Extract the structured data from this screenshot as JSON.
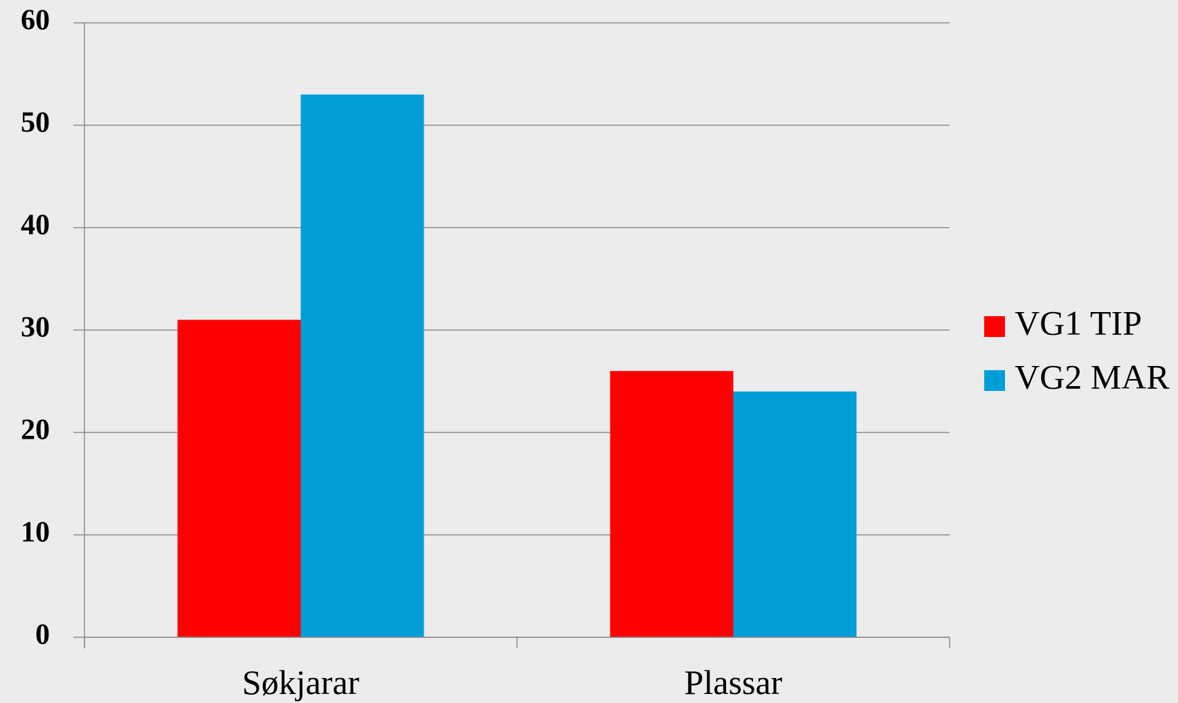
{
  "chart_data": {
    "type": "bar",
    "categories": [
      "Søkjarar",
      "Plassar"
    ],
    "series": [
      {
        "name": "VG1 TIP",
        "values": [
          31,
          26
        ],
        "color": "#ff0000"
      },
      {
        "name": "VG2 MAR",
        "values": [
          53,
          24
        ],
        "color": "#009ed8"
      }
    ],
    "title": "",
    "xlabel": "",
    "ylabel": "",
    "ylim": [
      0,
      60
    ],
    "yticks": [
      0,
      10,
      20,
      30,
      40,
      50,
      60
    ],
    "ytick_labels": [
      "0",
      "10",
      "20",
      "30",
      "40",
      "50",
      "60"
    ],
    "grid": true,
    "legend_position": "right"
  }
}
